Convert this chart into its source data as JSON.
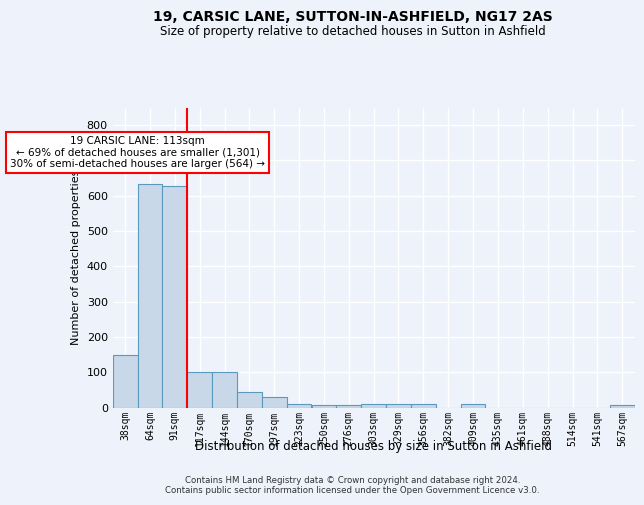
{
  "title": "19, CARSIC LANE, SUTTON-IN-ASHFIELD, NG17 2AS",
  "subtitle": "Size of property relative to detached houses in Sutton in Ashfield",
  "xlabel": "Distribution of detached houses by size in Sutton in Ashfield",
  "ylabel": "Number of detached properties",
  "footnote": "Contains HM Land Registry data © Crown copyright and database right 2024.\nContains public sector information licensed under the Open Government Licence v3.0.",
  "categories": [
    "38sqm",
    "64sqm",
    "91sqm",
    "117sqm",
    "144sqm",
    "170sqm",
    "197sqm",
    "223sqm",
    "250sqm",
    "276sqm",
    "303sqm",
    "329sqm",
    "356sqm",
    "382sqm",
    "409sqm",
    "435sqm",
    "461sqm",
    "488sqm",
    "514sqm",
    "541sqm",
    "567sqm"
  ],
  "values": [
    148,
    632,
    628,
    100,
    100,
    44,
    30,
    10,
    8,
    8,
    9,
    9,
    9,
    0,
    9,
    0,
    0,
    0,
    0,
    0,
    8
  ],
  "bar_color": "#c8d8e8",
  "bar_edge_color": "#5a9abf",
  "red_line_index": 3,
  "annotation_text": "19 CARSIC LANE: 113sqm\n← 69% of detached houses are smaller (1,301)\n30% of semi-detached houses are larger (564) →",
  "annotation_box_color": "white",
  "annotation_box_edge": "red",
  "vline_color": "red",
  "background_color": "#eef2fa",
  "grid_color": "white",
  "ylim": [
    0,
    850
  ],
  "yticks": [
    0,
    100,
    200,
    300,
    400,
    500,
    600,
    700,
    800
  ]
}
